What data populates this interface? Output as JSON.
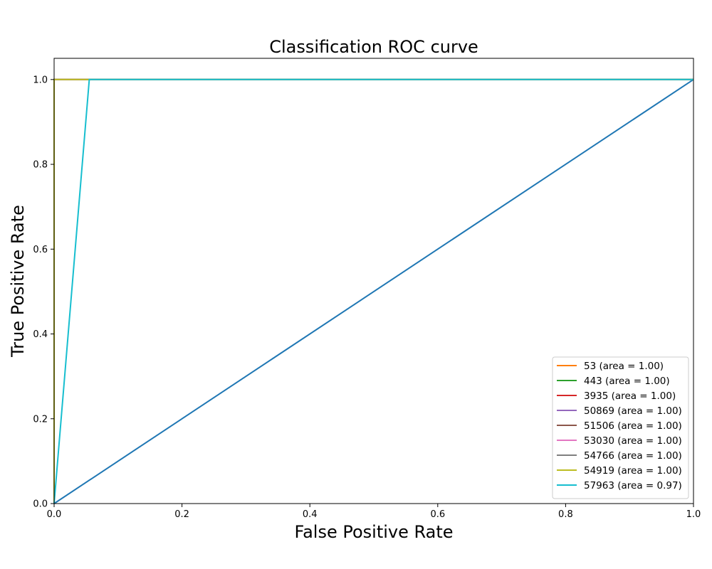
{
  "chart_data": {
    "type": "line",
    "title": "Classification ROC curve",
    "xlabel": "False Positive Rate",
    "ylabel": "True Positive Rate",
    "xlim": [
      0.0,
      1.0
    ],
    "ylim": [
      0.0,
      1.05
    ],
    "xticks": [
      "0.0",
      "0.2",
      "0.4",
      "0.6",
      "0.8",
      "1.0"
    ],
    "yticks": [
      "0.0",
      "0.2",
      "0.4",
      "0.6",
      "0.8",
      "1.0"
    ],
    "grid": false,
    "legend_position": "lower-right",
    "reference_line": {
      "color": "#1f77b4",
      "x": [
        0.0,
        1.0
      ],
      "y": [
        0.0,
        1.0
      ]
    },
    "series": [
      {
        "name": "53 (area = 1.00)",
        "color": "#ff7f0e",
        "x": [
          0.0,
          0.0,
          1.0
        ],
        "y": [
          0.0,
          1.0,
          1.0
        ]
      },
      {
        "name": "443 (area = 1.00)",
        "color": "#2ca02c",
        "x": [
          0.0,
          0.0,
          1.0
        ],
        "y": [
          0.0,
          1.0,
          1.0
        ]
      },
      {
        "name": "3935 (area = 1.00)",
        "color": "#d62728",
        "x": [
          0.0,
          0.0,
          1.0
        ],
        "y": [
          0.0,
          1.0,
          1.0
        ]
      },
      {
        "name": "50869 (area = 1.00)",
        "color": "#9467bd",
        "x": [
          0.0,
          0.0,
          1.0
        ],
        "y": [
          0.0,
          1.0,
          1.0
        ]
      },
      {
        "name": "51506 (area = 1.00)",
        "color": "#8c564b",
        "x": [
          0.0,
          0.0,
          1.0
        ],
        "y": [
          0.0,
          1.0,
          1.0
        ]
      },
      {
        "name": "53030 (area = 1.00)",
        "color": "#e377c2",
        "x": [
          0.0,
          0.0,
          1.0
        ],
        "y": [
          0.0,
          1.0,
          1.0
        ]
      },
      {
        "name": "54766 (area = 1.00)",
        "color": "#7f7f7f",
        "x": [
          0.0,
          0.0,
          1.0
        ],
        "y": [
          0.0,
          1.0,
          1.0
        ]
      },
      {
        "name": "54919 (area = 1.00)",
        "color": "#bcbd22",
        "x": [
          0.0,
          0.0,
          1.0
        ],
        "y": [
          0.0,
          1.0,
          1.0
        ]
      },
      {
        "name": "57963 (area = 0.97)",
        "color": "#17becf",
        "x": [
          0.0,
          0.055,
          1.0
        ],
        "y": [
          0.0,
          1.0,
          1.0
        ]
      }
    ]
  }
}
